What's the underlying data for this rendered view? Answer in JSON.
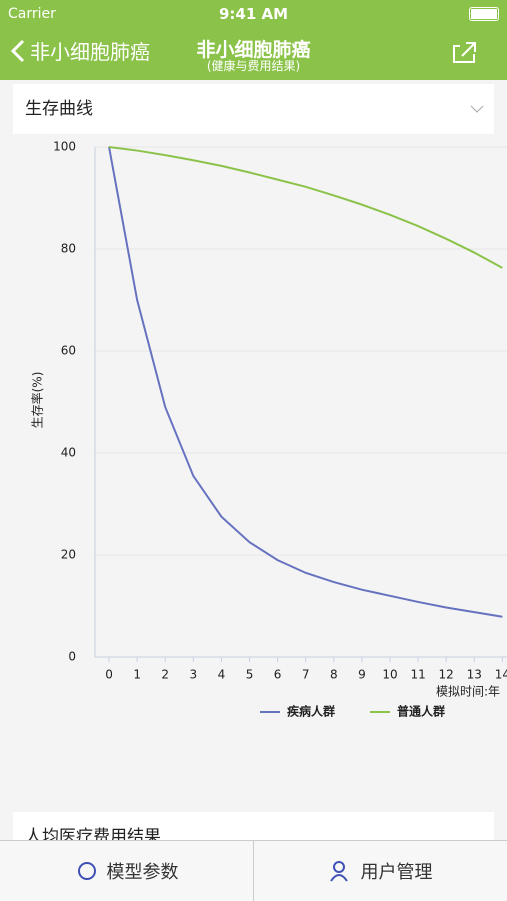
{
  "status_bar": {
    "carrier": "Carrier",
    "time": "9:41 AM"
  },
  "nav_bar": {
    "back": "非小细胞肺癌",
    "title": "非小细胞肺癌",
    "subtitle": "(健康与费用结果)"
  },
  "sections": [
    {
      "title": "生存曲线"
    },
    {
      "title": "人均医疗费用结果"
    }
  ],
  "chart_data": {
    "type": "line",
    "y_label": "生存率(%)",
    "x_label": "模拟时间:年",
    "x": [
      0,
      1,
      2,
      3,
      4,
      5,
      6,
      7,
      8,
      9,
      10,
      11,
      12,
      13,
      14
    ],
    "series": [
      {
        "name": "疾病人群",
        "color": "#6672c0",
        "values": [
          100,
          70,
          49,
          35.5,
          27.5,
          22.5,
          19,
          16.5,
          14.7,
          13.2,
          12,
          10.8,
          9.7,
          8.8,
          7.9
        ]
      },
      {
        "name": "普通人群",
        "color": "#8bc34a",
        "values": [
          100,
          99.3,
          98.4,
          97.4,
          96.3,
          95,
          93.6,
          92.2,
          90.5,
          88.7,
          86.7,
          84.5,
          82,
          79.3,
          76.3
        ]
      }
    ],
    "xlim": [
      -0.5,
      14.2
    ],
    "ylim": [
      0,
      100
    ],
    "xticks": [
      0,
      1,
      2,
      3,
      4,
      5,
      6,
      7,
      8,
      9,
      10,
      11,
      12,
      13,
      14
    ],
    "yticks": [
      0,
      20,
      40,
      60,
      80,
      100
    ],
    "grid": true
  },
  "tab_bar": {
    "items": [
      "模型参数",
      "用户管理"
    ]
  }
}
